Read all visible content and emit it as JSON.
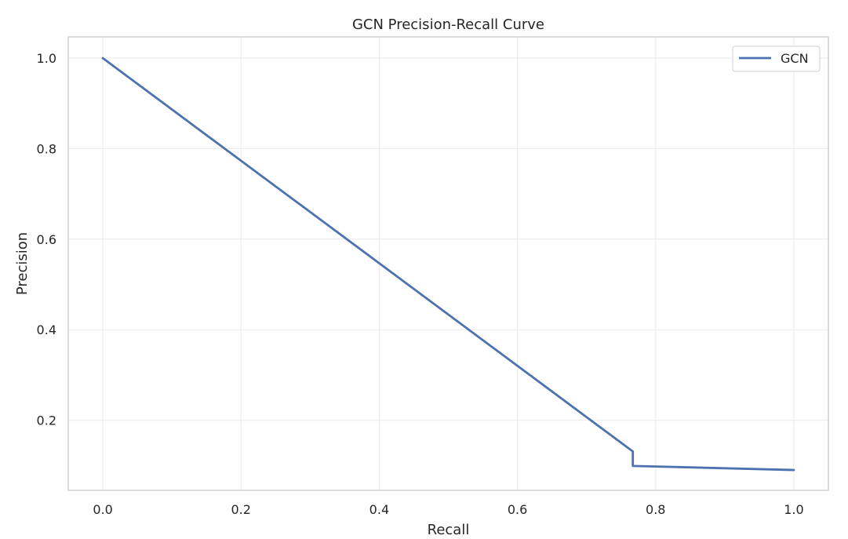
{
  "chart_data": {
    "type": "line",
    "title": "GCN Precision-Recall Curve",
    "xlabel": "Recall",
    "ylabel": "Precision",
    "xlim": [
      -0.05,
      1.05
    ],
    "ylim": [
      0.045,
      1.047
    ],
    "xticks": [
      0.0,
      0.2,
      0.4,
      0.6,
      0.8,
      1.0
    ],
    "xtick_labels": [
      "0.0",
      "0.2",
      "0.4",
      "0.6",
      "0.8",
      "1.0"
    ],
    "yticks": [
      0.2,
      0.4,
      0.6,
      0.8,
      1.0
    ],
    "ytick_labels": [
      "0.2",
      "0.4",
      "0.6",
      "0.8",
      "1.0"
    ],
    "grid": true,
    "legend_position": "upper right",
    "series": [
      {
        "name": "GCN",
        "color": "#4c72b0",
        "x": [
          0.0,
          0.767,
          0.767,
          1.0
        ],
        "y": [
          1.0,
          0.131,
          0.099,
          0.09
        ]
      }
    ]
  }
}
